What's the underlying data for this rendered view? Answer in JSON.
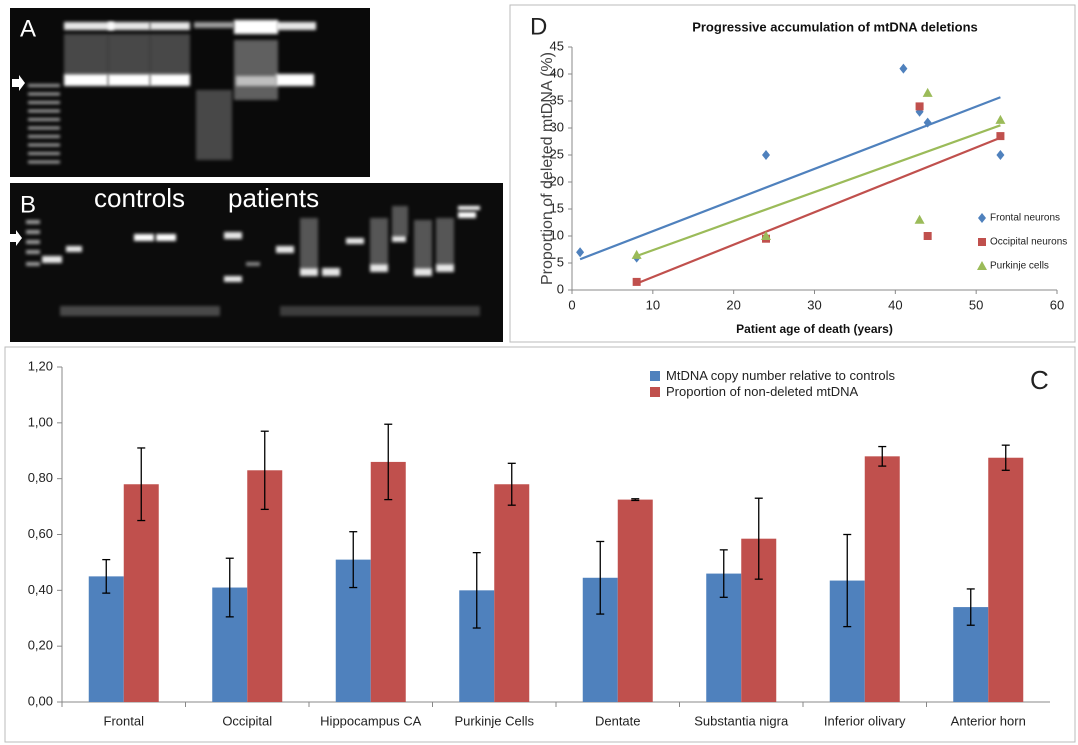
{
  "gel_panels": [
    {
      "label": "A"
    },
    {
      "label": "B",
      "annotations": [
        "controls",
        "patients"
      ]
    }
  ],
  "chart_data": [
    {
      "type": "scatter",
      "panel_label": "D",
      "title": "Progressive accumulation of mtDNA deletions",
      "x_label": "Patient age of death (years)",
      "y_label": "Proportion of deleted mtDNA (%)",
      "xlim": [
        0,
        60
      ],
      "xticks": [
        0,
        10,
        20,
        30,
        40,
        50,
        60
      ],
      "ylim": [
        0,
        45
      ],
      "yticks": [
        0,
        5,
        10,
        15,
        20,
        25,
        30,
        35,
        40,
        45
      ],
      "grid": false,
      "legend": "right",
      "series": [
        {
          "name": "Frontal neurons",
          "color": "#4f81bd",
          "marker": "diamond",
          "x": [
            1,
            8,
            24,
            41,
            43,
            44,
            53
          ],
          "values": [
            7,
            6,
            25,
            41,
            33,
            31,
            25
          ],
          "trendline": {
            "x": [
              1,
              53
            ],
            "values": [
              5.7,
              35.7
            ]
          }
        },
        {
          "name": "Occipital neurons",
          "color": "#c0504d",
          "marker": "square",
          "x": [
            8,
            24,
            43,
            44,
            53
          ],
          "values": [
            1.5,
            9.5,
            34,
            10,
            28.5
          ],
          "trendline": {
            "x": [
              8,
              53
            ],
            "values": [
              1.2,
              28.2
            ]
          }
        },
        {
          "name": "Purkinje cells",
          "color": "#9bbb59",
          "marker": "triangle",
          "x": [
            8,
            24,
            43,
            44,
            53
          ],
          "values": [
            6.5,
            10,
            13,
            36.5,
            31.5
          ],
          "trendline": {
            "x": [
              8,
              53
            ],
            "values": [
              6.3,
              30.5
            ]
          }
        }
      ]
    },
    {
      "type": "bar",
      "panel_label": "C",
      "categories": [
        "Frontal",
        "Occipital",
        "Hippocampus CA",
        "Purkinje Cells",
        "Dentate",
        "Substantia nigra",
        "Inferior olivary",
        "Anterior horn"
      ],
      "ylim": [
        0,
        1.2
      ],
      "yticks": [
        {
          "value": 0,
          "label": "0,00"
        },
        {
          "value": 0.2,
          "label": "0,20"
        },
        {
          "value": 0.4,
          "label": "0,40"
        },
        {
          "value": 0.6,
          "label": "0,60"
        },
        {
          "value": 0.8,
          "label": "0,80"
        },
        {
          "value": 1.0,
          "label": "1,00"
        },
        {
          "value": 1.2,
          "label": "1,20"
        }
      ],
      "grid": false,
      "legend": "top-right",
      "series": [
        {
          "name": "MtDNA copy number relative to controls",
          "color": "#4f81bd",
          "values": [
            0.45,
            0.41,
            0.51,
            0.4,
            0.445,
            0.46,
            0.435,
            0.34
          ],
          "errors": [
            0.06,
            0.105,
            0.1,
            0.135,
            0.13,
            0.085,
            0.165,
            0.065
          ]
        },
        {
          "name": "Proportion of non-deleted mtDNA",
          "color": "#c0504d",
          "values": [
            0.78,
            0.83,
            0.86,
            0.78,
            0.725,
            0.585,
            0.88,
            0.875
          ],
          "errors": [
            0.13,
            0.14,
            0.135,
            0.075,
            0.003,
            0.145,
            0.035,
            0.045
          ]
        }
      ]
    }
  ]
}
